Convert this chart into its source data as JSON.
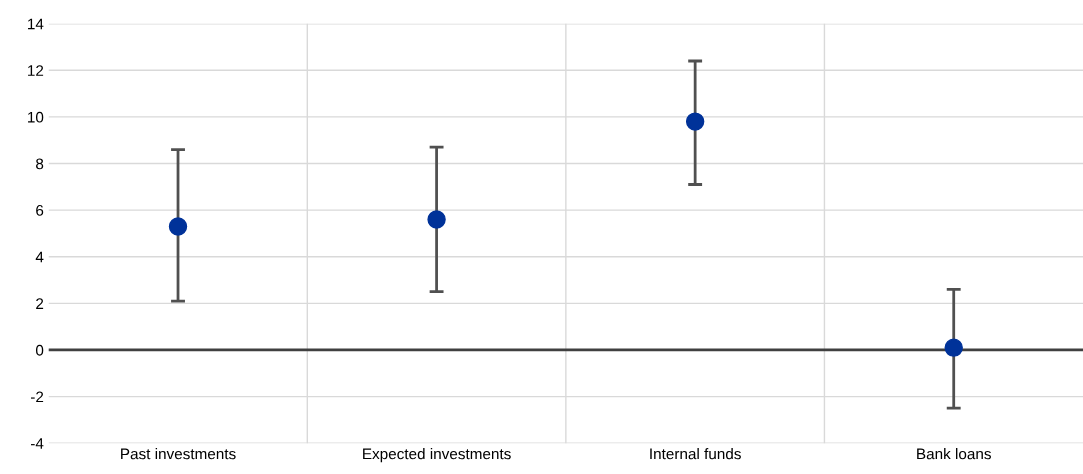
{
  "chart_data": {
    "type": "scatter",
    "categories": [
      "Past investments",
      "Expected investments",
      "Internal funds",
      "Bank loans"
    ],
    "series": [
      {
        "color": "#003299",
        "values": [
          5.3,
          5.6,
          9.8,
          0.1
        ],
        "errors": [
          [
            2.1,
            8.6
          ],
          [
            2.5,
            8.7
          ],
          [
            7.1,
            12.4
          ],
          [
            -2.5,
            2.6
          ]
        ]
      }
    ],
    "ylim": [
      -4,
      14
    ],
    "yticks": [
      -4,
      -2,
      0,
      2,
      4,
      6,
      8,
      10,
      12,
      14
    ],
    "grid": true,
    "marker": "circle",
    "ref_lines": [
      {
        "axis": "y",
        "value": 0,
        "color": "#404040"
      }
    ]
  }
}
